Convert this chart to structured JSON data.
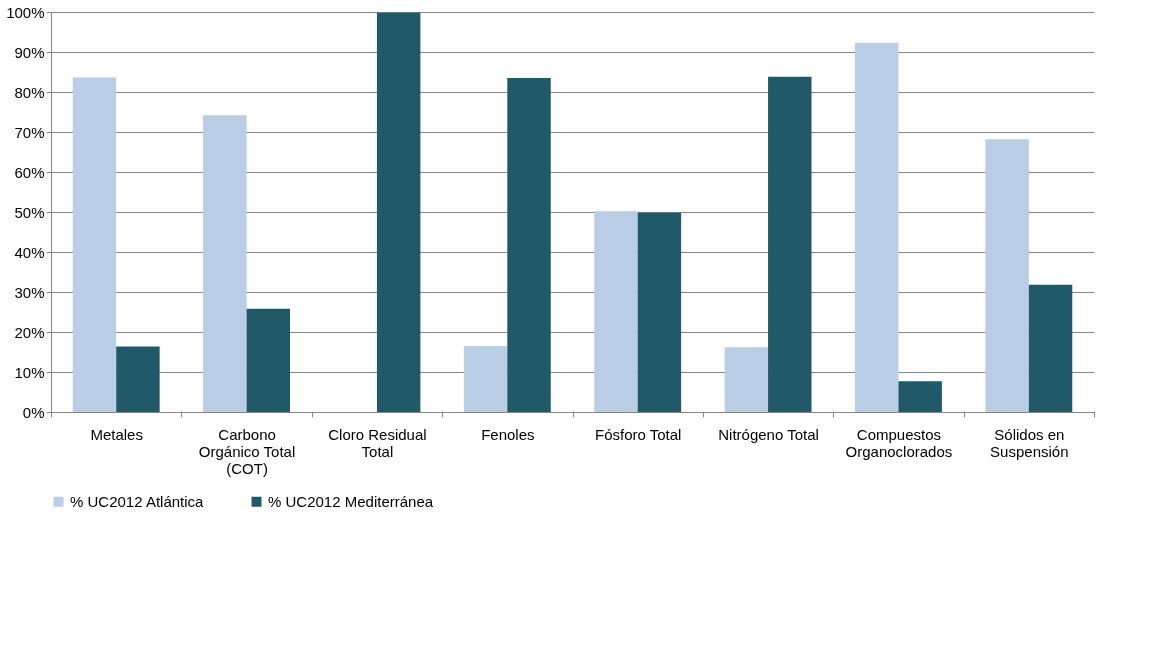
{
  "chart_data": {
    "type": "bar",
    "categories": [
      "Metales",
      "Carbono\nOrgánico Total\n(COT)",
      "Cloro Residual\nTotal",
      "Fenoles",
      "Fósforo Total",
      "Nitrógeno Total",
      "Compuestos\nOrganoclorados",
      "Sólidos en\nSuspensión"
    ],
    "series": [
      {
        "name": "% UC2012  Atlántica",
        "color": "#b9cde5",
        "values": [
          83.6,
          74.2,
          0,
          16.5,
          50.2,
          16.2,
          92.3,
          68.2
        ]
      },
      {
        "name": "% UC2012  Mediterránea",
        "color": "#215968",
        "values": [
          16.4,
          25.8,
          99.8,
          83.5,
          49.8,
          83.8,
          7.7,
          31.8
        ]
      }
    ],
    "ylim": [
      0,
      100
    ],
    "yticks": [
      {
        "value": 0,
        "label": "0%"
      },
      {
        "value": 10,
        "label": "10%"
      },
      {
        "value": 20,
        "label": "20%"
      },
      {
        "value": 30,
        "label": "30%"
      },
      {
        "value": 40,
        "label": "40%"
      },
      {
        "value": 50,
        "label": "50%"
      },
      {
        "value": 60,
        "label": "60%"
      },
      {
        "value": 70,
        "label": "70%"
      },
      {
        "value": 80,
        "label": "80%"
      },
      {
        "value": 90,
        "label": "90%"
      },
      {
        "value": 100,
        "label": "100%"
      }
    ],
    "grid": "y",
    "legend": "bottom"
  }
}
